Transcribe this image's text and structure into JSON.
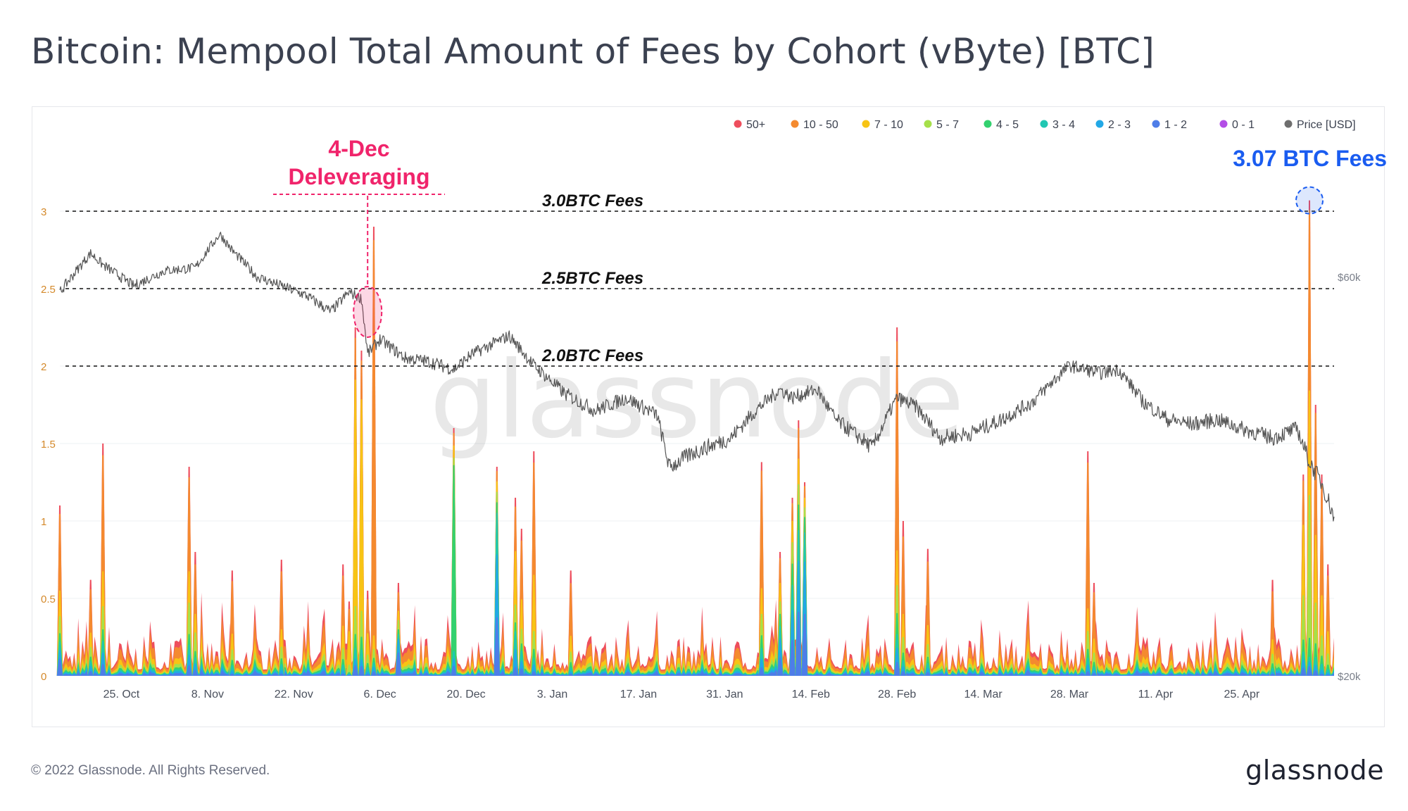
{
  "page": {
    "title": "Bitcoin: Mempool Total Amount of Fees by Cohort (vByte) [BTC]",
    "footer": "© 2022 Glassnode. All Rights Reserved.",
    "brand": "glassnode",
    "watermark": "glassnode"
  },
  "colors": {
    "50+": "#ee4e5d",
    "10 - 50": "#f48a2f",
    "7 - 10": "#f7c415",
    "5 - 7": "#a6e04a",
    "4 - 5": "#33d16f",
    "3 - 4": "#20c7b2",
    "2 - 3": "#22a8e6",
    "1 - 2": "#4e7de8",
    "0 - 1": "#b34ee6",
    "Price [USD]": "#6e6e6e",
    "annotation_pink": "#f0246b",
    "annotation_blue": "#1a5cf0"
  },
  "chart_data": {
    "type": "area",
    "stacked": true,
    "legend_position": "top-right",
    "grid": true,
    "x_ticks": [
      "25. Oct",
      "8. Nov",
      "22. Nov",
      "6. Dec",
      "20. Dec",
      "3. Jan",
      "17. Jan",
      "31. Jan",
      "14. Feb",
      "28. Feb",
      "14. Mar",
      "28. Mar",
      "11. Apr",
      "25. Apr"
    ],
    "y_ticks": [
      "0",
      "0.5",
      "1",
      "1.5",
      "2",
      "2.5",
      "3"
    ],
    "ylim": [
      0,
      3.1
    ],
    "y2_ticks": [
      "$20k",
      "$60k"
    ],
    "y2_log": true,
    "y2lim": [
      20000,
      75000
    ],
    "series_names": [
      "50+",
      "10 - 50",
      "7 - 10",
      "5 - 7",
      "4 - 5",
      "3 - 4",
      "2 - 3",
      "1 - 2",
      "0 - 1"
    ],
    "price_series_name": "Price [USD]",
    "x_range": [
      "2021-10-15",
      "2022-05-10"
    ],
    "fee_spikes": [
      {
        "date": "2021-10-15",
        "total": 1.1,
        "mix": [
          0.05,
          0.45,
          0.15,
          0.1,
          0.05,
          0.05,
          0.05,
          0.1,
          0
        ]
      },
      {
        "date": "2021-10-20",
        "total": 0.62,
        "mix": [
          0.1,
          0.45,
          0.15,
          0.1,
          0.05,
          0.05,
          0.05,
          0.05,
          0
        ]
      },
      {
        "date": "2021-10-22",
        "total": 1.5,
        "mix": [
          0.05,
          0.5,
          0.15,
          0.1,
          0.05,
          0.05,
          0.05,
          0.05,
          0
        ]
      },
      {
        "date": "2021-11-05",
        "total": 1.35,
        "mix": [
          0.05,
          0.45,
          0.15,
          0.15,
          0.05,
          0.05,
          0.05,
          0.05,
          0
        ]
      },
      {
        "date": "2021-11-06",
        "total": 0.8,
        "mix": [
          0.1,
          0.4,
          0.15,
          0.15,
          0.05,
          0.05,
          0.05,
          0.05,
          0
        ]
      },
      {
        "date": "2021-11-12",
        "total": 0.68,
        "mix": [
          0.1,
          0.5,
          0.15,
          0.1,
          0.05,
          0.05,
          0.03,
          0.02,
          0
        ]
      },
      {
        "date": "2021-11-20",
        "total": 0.75,
        "mix": [
          0.1,
          0.5,
          0.15,
          0.1,
          0.05,
          0.05,
          0.03,
          0.02,
          0
        ]
      },
      {
        "date": "2021-11-30",
        "total": 0.72,
        "mix": [
          0.1,
          0.45,
          0.2,
          0.1,
          0.05,
          0.05,
          0.03,
          0.02,
          0
        ]
      },
      {
        "date": "2021-12-01",
        "total": 0.48,
        "mix": [
          0.1,
          0.3,
          0.45,
          0.1,
          0.02,
          0.01,
          0.01,
          0.01,
          0
        ]
      },
      {
        "date": "2021-12-02",
        "total": 2.25,
        "mix": [
          0.03,
          0.12,
          0.65,
          0.08,
          0.04,
          0.03,
          0.02,
          0.03,
          0
        ]
      },
      {
        "date": "2021-12-03",
        "total": 2.1,
        "mix": [
          0.03,
          0.12,
          0.65,
          0.08,
          0.04,
          0.03,
          0.02,
          0.03,
          0
        ]
      },
      {
        "date": "2021-12-04",
        "total": 0.55,
        "mix": [
          0.1,
          0.4,
          0.25,
          0.1,
          0.05,
          0.05,
          0.03,
          0.02,
          0
        ]
      },
      {
        "date": "2021-12-05",
        "total": 2.9,
        "mix": [
          0.03,
          0.88,
          0.03,
          0.02,
          0.01,
          0.01,
          0.01,
          0.01,
          0
        ]
      },
      {
        "date": "2021-12-09",
        "total": 0.6,
        "mix": [
          0.1,
          0.2,
          0.1,
          0.1,
          0.05,
          0.05,
          0.15,
          0.25,
          0
        ]
      },
      {
        "date": "2021-12-18",
        "total": 1.6,
        "mix": [
          0.02,
          0.05,
          0.05,
          0.03,
          0.75,
          0.03,
          0.03,
          0.04,
          0
        ]
      },
      {
        "date": "2021-12-25",
        "total": 1.35,
        "mix": [
          0.02,
          0.05,
          0.05,
          0.05,
          0.05,
          0.2,
          0.3,
          0.28,
          0
        ]
      },
      {
        "date": "2021-12-28",
        "total": 1.15,
        "mix": [
          0.05,
          0.25,
          0.3,
          0.1,
          0.05,
          0.1,
          0.1,
          0.05,
          0
        ]
      },
      {
        "date": "2021-12-29",
        "total": 0.95,
        "mix": [
          0.08,
          0.4,
          0.2,
          0.1,
          0.05,
          0.07,
          0.05,
          0.05,
          0
        ]
      },
      {
        "date": "2021-12-31",
        "total": 1.45,
        "mix": [
          0.05,
          0.5,
          0.25,
          0.08,
          0.04,
          0.03,
          0.03,
          0.02,
          0
        ]
      },
      {
        "date": "2022-01-06",
        "total": 0.68,
        "mix": [
          0.12,
          0.5,
          0.15,
          0.1,
          0.05,
          0.04,
          0.02,
          0.02,
          0
        ]
      },
      {
        "date": "2022-02-06",
        "total": 1.38,
        "mix": [
          0.04,
          0.55,
          0.12,
          0.1,
          0.06,
          0.05,
          0.04,
          0.04,
          0
        ]
      },
      {
        "date": "2022-02-09",
        "total": 0.8,
        "mix": [
          0.05,
          0.2,
          0.15,
          0.1,
          0.1,
          0.1,
          0.15,
          0.15,
          0
        ]
      },
      {
        "date": "2022-02-11",
        "total": 1.15,
        "mix": [
          0.03,
          0.1,
          0.12,
          0.12,
          0.12,
          0.14,
          0.17,
          0.2,
          0
        ]
      },
      {
        "date": "2022-02-12",
        "total": 1.65,
        "mix": [
          0.03,
          0.12,
          0.1,
          0.08,
          0.1,
          0.12,
          0.2,
          0.25,
          0
        ]
      },
      {
        "date": "2022-02-13",
        "total": 1.25,
        "mix": [
          0.02,
          0.06,
          0.05,
          0.05,
          0.08,
          0.15,
          0.27,
          0.32,
          0
        ]
      },
      {
        "date": "2022-02-28",
        "total": 2.25,
        "mix": [
          0.04,
          0.6,
          0.1,
          0.08,
          0.06,
          0.04,
          0.04,
          0.04,
          0
        ]
      },
      {
        "date": "2022-03-01",
        "total": 1.0,
        "mix": [
          0.1,
          0.5,
          0.15,
          0.1,
          0.05,
          0.04,
          0.03,
          0.03,
          0
        ]
      },
      {
        "date": "2022-03-05",
        "total": 0.82,
        "mix": [
          0.1,
          0.5,
          0.15,
          0.1,
          0.05,
          0.04,
          0.03,
          0.03,
          0
        ]
      },
      {
        "date": "2022-03-31",
        "total": 1.45,
        "mix": [
          0.05,
          0.65,
          0.1,
          0.08,
          0.04,
          0.03,
          0.03,
          0.02,
          0
        ]
      },
      {
        "date": "2022-04-01",
        "total": 0.6,
        "mix": [
          0.1,
          0.5,
          0.15,
          0.1,
          0.05,
          0.04,
          0.03,
          0.03,
          0
        ]
      },
      {
        "date": "2022-04-30",
        "total": 0.62,
        "mix": [
          0.12,
          0.5,
          0.15,
          0.1,
          0.05,
          0.04,
          0.02,
          0.02,
          0
        ]
      },
      {
        "date": "2022-05-05",
        "total": 1.3,
        "mix": [
          0.03,
          0.22,
          0.35,
          0.22,
          0.06,
          0.04,
          0.04,
          0.04,
          0
        ]
      },
      {
        "date": "2022-05-06",
        "total": 3.07,
        "mix": [
          0.02,
          0.38,
          0.22,
          0.3,
          0.04,
          0.01,
          0.01,
          0.02,
          0
        ]
      },
      {
        "date": "2022-05-07",
        "total": 1.75,
        "mix": [
          0.03,
          0.45,
          0.25,
          0.15,
          0.05,
          0.03,
          0.02,
          0.02,
          0
        ]
      },
      {
        "date": "2022-05-08",
        "total": 1.3,
        "mix": [
          0.05,
          0.55,
          0.2,
          0.1,
          0.04,
          0.03,
          0.02,
          0.01,
          0
        ]
      },
      {
        "date": "2022-05-09",
        "total": 0.72,
        "mix": [
          0.1,
          0.5,
          0.2,
          0.1,
          0.04,
          0.03,
          0.02,
          0.01,
          0
        ]
      }
    ],
    "price_points": [
      {
        "date": "2021-10-15",
        "usd": 57500
      },
      {
        "date": "2021-10-20",
        "usd": 64000
      },
      {
        "date": "2021-10-22",
        "usd": 62000
      },
      {
        "date": "2021-10-27",
        "usd": 58500
      },
      {
        "date": "2021-11-01",
        "usd": 61000
      },
      {
        "date": "2021-11-06",
        "usd": 61500
      },
      {
        "date": "2021-11-10",
        "usd": 67500
      },
      {
        "date": "2021-11-12",
        "usd": 64500
      },
      {
        "date": "2021-11-16",
        "usd": 60000
      },
      {
        "date": "2021-11-20",
        "usd": 58500
      },
      {
        "date": "2021-11-24",
        "usd": 57000
      },
      {
        "date": "2021-11-28",
        "usd": 54500
      },
      {
        "date": "2021-12-01",
        "usd": 57500
      },
      {
        "date": "2021-12-03",
        "usd": 56500
      },
      {
        "date": "2021-12-04",
        "usd": 48500
      },
      {
        "date": "2021-12-06",
        "usd": 50500
      },
      {
        "date": "2021-12-10",
        "usd": 48000
      },
      {
        "date": "2021-12-14",
        "usd": 47500
      },
      {
        "date": "2021-12-18",
        "usd": 46500
      },
      {
        "date": "2021-12-21",
        "usd": 48500
      },
      {
        "date": "2021-12-27",
        "usd": 51000
      },
      {
        "date": "2021-12-31",
        "usd": 47000
      },
      {
        "date": "2022-01-05",
        "usd": 43500
      },
      {
        "date": "2022-01-10",
        "usd": 41500
      },
      {
        "date": "2022-01-15",
        "usd": 43000
      },
      {
        "date": "2022-01-20",
        "usd": 41000
      },
      {
        "date": "2022-01-22",
        "usd": 35500
      },
      {
        "date": "2022-01-26",
        "usd": 37000
      },
      {
        "date": "2022-02-01",
        "usd": 38500
      },
      {
        "date": "2022-02-05",
        "usd": 41500
      },
      {
        "date": "2022-02-09",
        "usd": 44000
      },
      {
        "date": "2022-02-11",
        "usd": 43000
      },
      {
        "date": "2022-02-15",
        "usd": 44000
      },
      {
        "date": "2022-02-18",
        "usd": 40500
      },
      {
        "date": "2022-02-24",
        "usd": 37500
      },
      {
        "date": "2022-02-28",
        "usd": 43000
      },
      {
        "date": "2022-03-03",
        "usd": 42000
      },
      {
        "date": "2022-03-07",
        "usd": 38500
      },
      {
        "date": "2022-03-12",
        "usd": 39000
      },
      {
        "date": "2022-03-17",
        "usd": 40500
      },
      {
        "date": "2022-03-22",
        "usd": 42500
      },
      {
        "date": "2022-03-28",
        "usd": 47000
      },
      {
        "date": "2022-04-02",
        "usd": 46000
      },
      {
        "date": "2022-04-05",
        "usd": 46500
      },
      {
        "date": "2022-04-09",
        "usd": 42500
      },
      {
        "date": "2022-04-13",
        "usd": 40500
      },
      {
        "date": "2022-04-17",
        "usd": 40000
      },
      {
        "date": "2022-04-21",
        "usd": 40500
      },
      {
        "date": "2022-04-25",
        "usd": 39500
      },
      {
        "date": "2022-04-30",
        "usd": 38500
      },
      {
        "date": "2022-05-04",
        "usd": 39500
      },
      {
        "date": "2022-05-06",
        "usd": 36000
      },
      {
        "date": "2022-05-08",
        "usd": 34000
      },
      {
        "date": "2022-05-10",
        "usd": 31000
      }
    ],
    "reference_lines": [
      {
        "y": 3.0,
        "label": "3.0BTC Fees"
      },
      {
        "y": 2.5,
        "label": "2.5BTC Fees"
      },
      {
        "y": 2.0,
        "label": "2.0BTC Fees"
      }
    ],
    "annotations": [
      {
        "date": "2021-12-04",
        "lines": [
          "4-Dec",
          "Deleveraging"
        ],
        "color": "pink",
        "y_center": 2.35
      },
      {
        "date": "2022-05-06",
        "lines": [
          "3.07 BTC Fees"
        ],
        "color": "blue",
        "y_center": 3.07
      }
    ]
  }
}
